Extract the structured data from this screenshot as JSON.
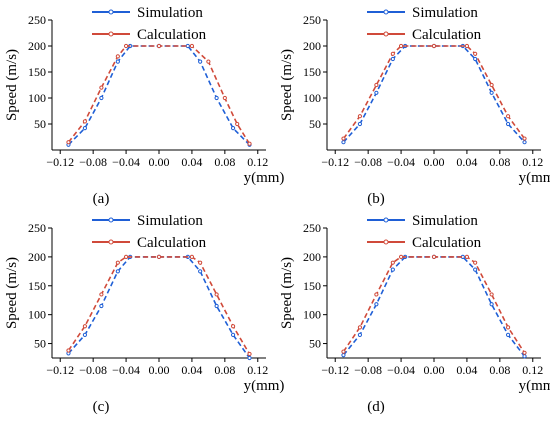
{
  "figure": {
    "colors": {
      "Simulation": "#1f5fd6",
      "Calculation": "#d04a3a"
    },
    "panel_labels": [
      "(a)",
      "(b)",
      "(c)",
      "(d)"
    ]
  },
  "chart_data": [
    {
      "panel": "(a)",
      "type": "line",
      "xlabel": "y(mm)",
      "ylabel": "Speed (m/s)",
      "xlim": [
        -0.13,
        0.13
      ],
      "ylim": [
        0,
        250
      ],
      "xticks": [
        "-0.12",
        "-0.08",
        "-0.04",
        "0.00",
        "0.04",
        "0.08",
        "0.12"
      ],
      "yticks": [
        "50",
        "100",
        "150",
        "200",
        "250"
      ],
      "grid": false,
      "legend": "top-center",
      "series": [
        {
          "name": "Simulation",
          "x": [
            -0.11,
            -0.09,
            -0.07,
            -0.05,
            -0.035,
            0.0,
            0.035,
            0.05,
            0.07,
            0.09,
            0.11
          ],
          "y": [
            10,
            42,
            100,
            170,
            200,
            200,
            200,
            170,
            100,
            42,
            10
          ]
        },
        {
          "name": "Calculation",
          "x": [
            -0.11,
            -0.09,
            -0.07,
            -0.05,
            -0.04,
            0.0,
            0.04,
            0.06,
            0.08,
            0.095,
            0.11
          ],
          "y": [
            15,
            55,
            120,
            180,
            200,
            200,
            200,
            170,
            100,
            50,
            12
          ]
        }
      ]
    },
    {
      "panel": "(b)",
      "type": "line",
      "xlabel": "y(mm)",
      "ylabel": "Speed (m/s)",
      "xlim": [
        -0.13,
        0.13
      ],
      "ylim": [
        0,
        250
      ],
      "xticks": [
        "-0.12",
        "-0.08",
        "-0.04",
        "0.00",
        "0.04",
        "0.08",
        "0.12"
      ],
      "yticks": [
        "50",
        "100",
        "150",
        "200",
        "250"
      ],
      "grid": false,
      "legend": "top-center",
      "series": [
        {
          "name": "Simulation",
          "x": [
            -0.11,
            -0.09,
            -0.07,
            -0.05,
            -0.035,
            0.0,
            0.035,
            0.05,
            0.07,
            0.09,
            0.11
          ],
          "y": [
            15,
            50,
            110,
            175,
            200,
            200,
            200,
            175,
            110,
            50,
            15
          ]
        },
        {
          "name": "Calculation",
          "x": [
            -0.11,
            -0.09,
            -0.07,
            -0.05,
            -0.04,
            0.0,
            0.04,
            0.05,
            0.07,
            0.09,
            0.11
          ],
          "y": [
            22,
            65,
            125,
            185,
            200,
            200,
            200,
            185,
            125,
            65,
            22
          ]
        }
      ]
    },
    {
      "panel": "(c)",
      "type": "line",
      "xlabel": "y(mm)",
      "ylabel": "Speed (m/s)",
      "xlim": [
        -0.13,
        0.13
      ],
      "ylim": [
        25,
        250
      ],
      "xticks": [
        "-0.12",
        "-0.08",
        "-0.04",
        "0.00",
        "0.04",
        "0.08",
        "0.12"
      ],
      "yticks": [
        "50",
        "100",
        "150",
        "200",
        "250"
      ],
      "grid": false,
      "legend": "top-center",
      "series": [
        {
          "name": "Simulation",
          "x": [
            -0.11,
            -0.09,
            -0.07,
            -0.05,
            -0.035,
            0.0,
            0.035,
            0.05,
            0.07,
            0.09,
            0.11
          ],
          "y": [
            33,
            65,
            115,
            175,
            200,
            200,
            200,
            175,
            115,
            65,
            25
          ]
        },
        {
          "name": "Calculation",
          "x": [
            -0.11,
            -0.09,
            -0.07,
            -0.05,
            -0.04,
            0.0,
            0.04,
            0.05,
            0.07,
            0.09,
            0.11
          ],
          "y": [
            38,
            80,
            135,
            190,
            200,
            200,
            200,
            190,
            135,
            80,
            32
          ]
        }
      ]
    },
    {
      "panel": "(d)",
      "type": "line",
      "xlabel": "y(mm)",
      "ylabel": "Speed (m/s)",
      "xlim": [
        -0.13,
        0.13
      ],
      "ylim": [
        25,
        250
      ],
      "xticks": [
        "-0.12",
        "-0.08",
        "-0.04",
        "0.00",
        "0.04",
        "0.08",
        "0.12"
      ],
      "yticks": [
        "50",
        "100",
        "150",
        "200",
        "250"
      ],
      "grid": false,
      "legend": "top-center",
      "series": [
        {
          "name": "Simulation",
          "x": [
            -0.11,
            -0.09,
            -0.07,
            -0.05,
            -0.035,
            0.0,
            0.035,
            0.05,
            0.07,
            0.09,
            0.11
          ],
          "y": [
            30,
            65,
            118,
            178,
            200,
            200,
            200,
            178,
            118,
            65,
            28
          ]
        },
        {
          "name": "Calculation",
          "x": [
            -0.11,
            -0.09,
            -0.07,
            -0.05,
            -0.04,
            0.0,
            0.04,
            0.05,
            0.07,
            0.09,
            0.11
          ],
          "y": [
            36,
            78,
            135,
            190,
            200,
            200,
            200,
            190,
            135,
            78,
            34
          ]
        }
      ]
    }
  ]
}
